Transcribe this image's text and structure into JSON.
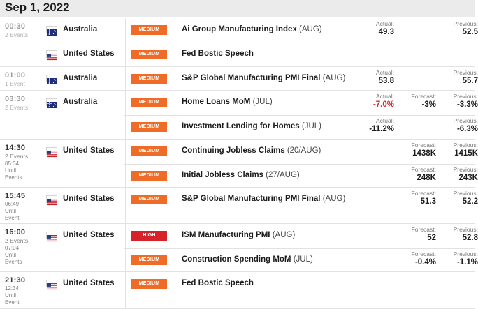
{
  "date_header": "Sep 1, 2022",
  "groups": [
    {
      "time": "00:30",
      "sub": "2 Events",
      "rows": [
        {
          "country": "Australia",
          "flag": "au",
          "impact": "MEDIUM",
          "impact_level": "medium",
          "event": "Ai Group Manufacturing Index",
          "period": "(AUG)",
          "actual_label": "Actual:",
          "actual": "49.3",
          "forecast_label": "",
          "forecast": "",
          "previous_label": "Previous:",
          "previous": "52.5"
        },
        {
          "country": "United States",
          "flag": "us",
          "impact": "MEDIUM",
          "impact_level": "medium",
          "event": "Fed Bostic Speech",
          "period": "",
          "actual_label": "",
          "actual": "",
          "forecast_label": "",
          "forecast": "",
          "previous_label": "",
          "previous": ""
        }
      ]
    },
    {
      "time": "01:00",
      "sub": "1 Event",
      "rows": [
        {
          "country": "Australia",
          "flag": "au",
          "impact": "MEDIUM",
          "impact_level": "medium",
          "event": "S&P Global Manufacturing PMI Final",
          "period": "(AUG)",
          "actual_label": "Actual:",
          "actual": "53.8",
          "forecast_label": "",
          "forecast": "",
          "previous_label": "Previous:",
          "previous": "55.7"
        }
      ]
    },
    {
      "time": "03:30",
      "sub": "2 Events",
      "rows": [
        {
          "country": "Australia",
          "flag": "au",
          "impact": "MEDIUM",
          "impact_level": "medium",
          "event": "Home Loans MoM",
          "period": "(JUL)",
          "actual_label": "Actual:",
          "actual": "-7.0%",
          "actual_neg": true,
          "forecast_label": "Forecast:",
          "forecast": "-3%",
          "previous_label": "Previous:",
          "previous": "-3.3%"
        },
        {
          "country": "",
          "flag": "",
          "impact": "MEDIUM",
          "impact_level": "medium",
          "event": "Investment Lending for Homes",
          "period": "(JUL)",
          "actual_label": "Actual:",
          "actual": "-11.2%",
          "forecast_label": "",
          "forecast": "",
          "previous_label": "Previous:",
          "previous": "-6.3%"
        }
      ]
    },
    {
      "time": "14:30",
      "sub": "2 Events",
      "countdown": "05:34",
      "until": "Until",
      "ev": "Events",
      "rows": [
        {
          "country": "United States",
          "flag": "us",
          "impact": "MEDIUM",
          "impact_level": "medium",
          "event": "Continuing Jobless Claims",
          "period": "(20/AUG)",
          "actual_label": "",
          "actual": "",
          "forecast_label": "Forecast:",
          "forecast": "1438K",
          "previous_label": "Previous:",
          "previous": "1415K"
        },
        {
          "country": "",
          "flag": "",
          "impact": "MEDIUM",
          "impact_level": "medium",
          "event": "Initial Jobless Claims",
          "period": "(27/AUG)",
          "actual_label": "",
          "actual": "",
          "forecast_label": "Forecast:",
          "forecast": "248K",
          "previous_label": "Previous:",
          "previous": "243K"
        }
      ]
    },
    {
      "time": "15:45",
      "sub": "",
      "countdown": "06:49",
      "until": "Until",
      "ev": "Event",
      "rows": [
        {
          "country": "United States",
          "flag": "us",
          "impact": "MEDIUM",
          "impact_level": "medium",
          "event": "S&P Global Manufacturing PMI Final",
          "period": "(AUG)",
          "actual_label": "",
          "actual": "",
          "forecast_label": "Forecast:",
          "forecast": "51.3",
          "previous_label": "Previous:",
          "previous": "52.2"
        }
      ]
    },
    {
      "time": "16:00",
      "sub": "2 Events",
      "countdown": "07:04",
      "until": "Until",
      "ev": "Events",
      "rows": [
        {
          "country": "United States",
          "flag": "us",
          "impact": "HIGH",
          "impact_level": "high",
          "event": "ISM Manufacturing PMI",
          "period": "(AUG)",
          "actual_label": "",
          "actual": "",
          "forecast_label": "Forecast:",
          "forecast": "52",
          "previous_label": "Previous:",
          "previous": "52.8"
        },
        {
          "country": "",
          "flag": "",
          "impact": "MEDIUM",
          "impact_level": "medium",
          "event": "Construction Spending MoM",
          "period": "(JUL)",
          "actual_label": "",
          "actual": "",
          "forecast_label": "Forecast:",
          "forecast": "-0.4%",
          "previous_label": "Previous:",
          "previous": "-1.1%"
        }
      ]
    },
    {
      "time": "21:30",
      "sub": "",
      "countdown": "12:34",
      "until": "Until",
      "ev": "Event",
      "rows": [
        {
          "country": "United States",
          "flag": "us",
          "impact": "MEDIUM",
          "impact_level": "medium",
          "event": "Fed Bostic Speech",
          "period": "",
          "actual_label": "",
          "actual": "",
          "forecast_label": "",
          "forecast": "",
          "previous_label": "",
          "previous": ""
        }
      ]
    }
  ]
}
